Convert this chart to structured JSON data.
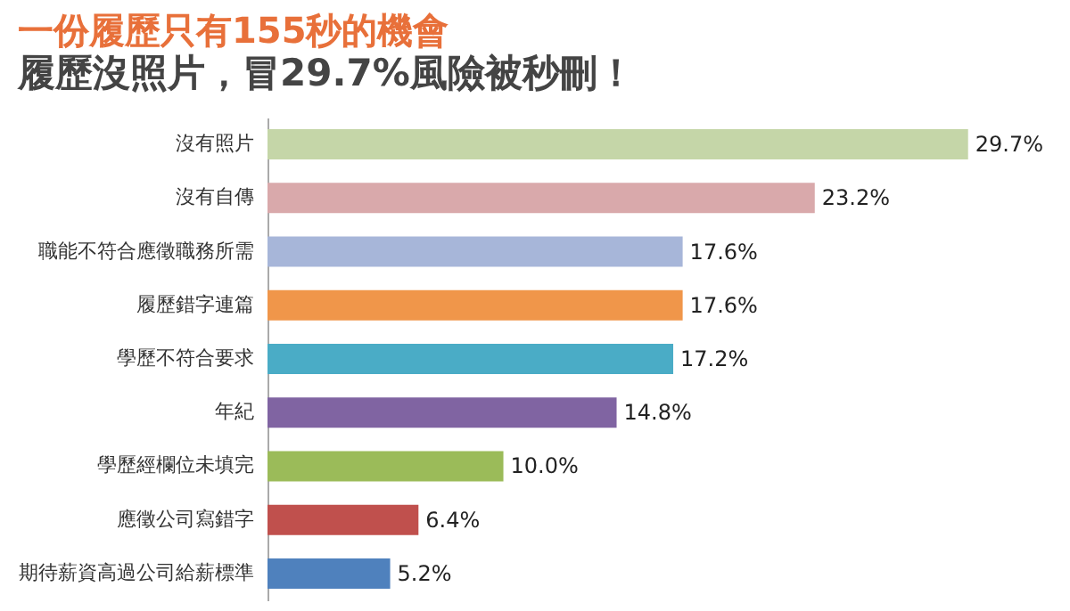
{
  "chart_data": {
    "type": "bar",
    "orientation": "horizontal",
    "title": "一份履歷只有155秒的機會",
    "subtitle": "履歷沒照片，冒29.7%風險被秒刪！",
    "categories": [
      "沒有照片",
      "沒有自傳",
      "職能不符合應徵職務所需",
      "履歷錯字連篇",
      "學歷不符合要求",
      "年紀",
      "學歷經欄位未填完",
      "應徵公司寫錯字",
      "期待薪資高過公司給薪標準"
    ],
    "values": [
      29.7,
      23.2,
      17.6,
      17.6,
      17.2,
      14.8,
      10.0,
      6.4,
      5.2
    ],
    "value_labels": [
      "29.7%",
      "23.2%",
      "17.6%",
      "17.6%",
      "17.2%",
      "14.8%",
      "10.0%",
      "6.4%",
      "5.2%"
    ],
    "colors": [
      "#c5d6a8",
      "#d9a9ab",
      "#a7b6d9",
      "#f0964a",
      "#4aacc6",
      "#8064a2",
      "#9bbb59",
      "#c0504d",
      "#4f81bd"
    ],
    "tick_labels": "y"
  }
}
